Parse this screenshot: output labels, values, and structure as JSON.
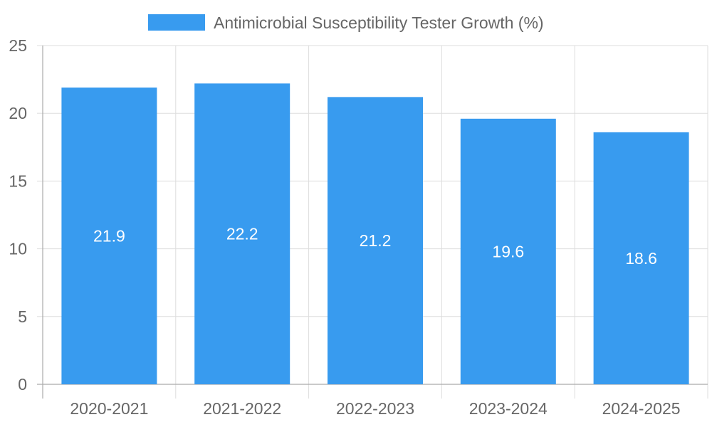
{
  "chart_data": {
    "type": "bar",
    "categories": [
      "2020-2021",
      "2021-2022",
      "2022-2023",
      "2023-2024",
      "2024-2025"
    ],
    "series": [
      {
        "name": "Antimicrobial Susceptibility Tester Growth (%)",
        "values": [
          21.9,
          22.2,
          21.2,
          19.6,
          18.6
        ],
        "color": "#389BEF"
      }
    ],
    "value_labels": [
      "21.9",
      "22.2",
      "21.2",
      "19.6",
      "18.6"
    ],
    "y_ticks": [
      0,
      5,
      10,
      15,
      20,
      25
    ],
    "y_tick_labels": [
      "0",
      "5",
      "10",
      "15",
      "20",
      "25"
    ],
    "ylim": [
      0,
      25
    ],
    "grid": true,
    "legend_position": "top-center",
    "title": "",
    "xlabel": "",
    "ylabel": "",
    "colors": {
      "bar": "#389BEF",
      "grid": "#dddddd",
      "axis": "#aaaaaa",
      "text": "#666666",
      "data_label": "#ffffff"
    }
  }
}
